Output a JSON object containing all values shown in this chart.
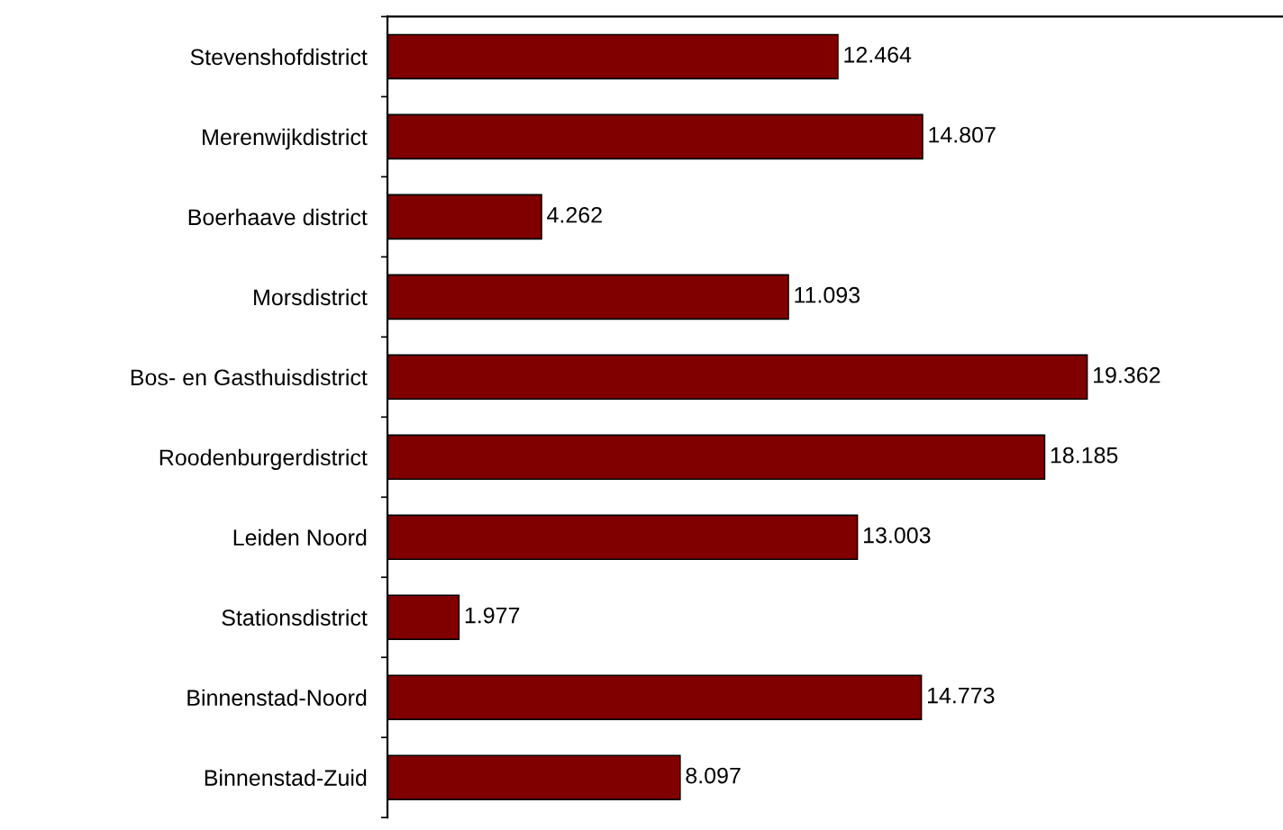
{
  "chart_data": {
    "type": "bar",
    "orientation": "horizontal",
    "categories": [
      "Stevenshofdistrict",
      "Merenwijkdistrict",
      "Boerhaave district",
      "Morsdistrict",
      "Bos- en Gasthuisdistrict",
      "Roodenburgerdistrict",
      "Leiden Noord",
      "Stationsdistrict",
      "Binnenstad-Noord",
      "Binnenstad-Zuid"
    ],
    "values": [
      12464,
      14807,
      4262,
      11093,
      19362,
      18185,
      13003,
      1977,
      14773,
      8097
    ],
    "value_labels": [
      "12.464",
      "14.807",
      "4.262",
      "11.093",
      "19.362",
      "18.185",
      "13.003",
      "1.977",
      "14.773",
      "8.097"
    ],
    "color": "#800000",
    "grid": false,
    "legend": false
  }
}
